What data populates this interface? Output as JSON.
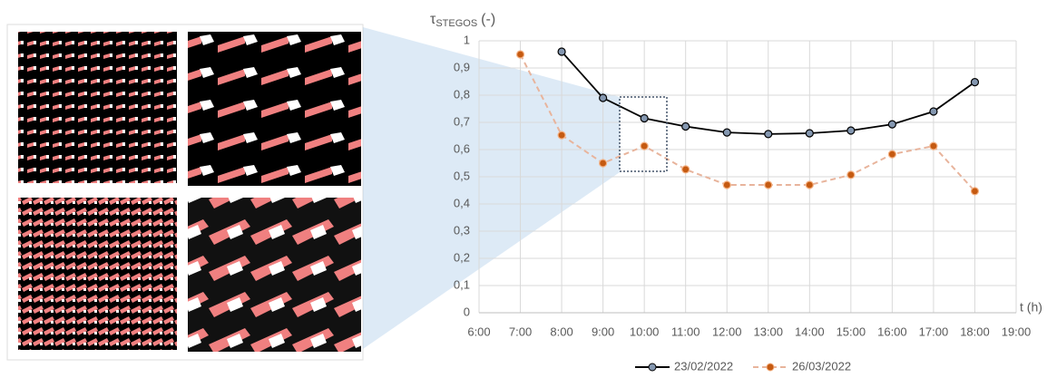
{
  "chart_data": {
    "type": "line",
    "y_label": {
      "symbol": "τ",
      "subscript": "STEGOS",
      "unit": "(-)"
    },
    "x_label": "t (h)",
    "categories": [
      "6:00",
      "7:00",
      "8:00",
      "9:00",
      "10:00",
      "11:00",
      "12:00",
      "13:00",
      "14:00",
      "15:00",
      "16:00",
      "17:00",
      "18:00",
      "19:00"
    ],
    "series": [
      {
        "name": "23/02/2022",
        "color": "#000000",
        "dashed": false,
        "values": [
          null,
          null,
          0.96,
          0.79,
          0.715,
          0.685,
          0.663,
          0.657,
          0.66,
          0.67,
          0.693,
          0.74,
          0.848,
          null
        ]
      },
      {
        "name": "26/03/2022",
        "color": "#e8b49c",
        "dashed": true,
        "values": [
          null,
          0.95,
          0.653,
          0.55,
          0.613,
          0.527,
          0.47,
          0.47,
          0.47,
          0.507,
          0.583,
          0.613,
          0.447,
          null
        ]
      }
    ],
    "ylim": [
      0,
      1
    ],
    "yticks": [
      0,
      {
        "value": 0.1,
        "label": "0,1"
      },
      {
        "value": 0.2,
        "label": "0,2"
      },
      {
        "value": 0.3,
        "label": "0,3"
      },
      {
        "value": 0.4,
        "label": "0,4"
      },
      {
        "value": 0.5,
        "label": "0,5"
      },
      {
        "value": 0.6,
        "label": "0,6"
      },
      {
        "value": 0.7,
        "label": "0,7"
      },
      {
        "value": 0.8,
        "label": "0,8"
      },
      {
        "value": 0.9,
        "label": "0,9"
      },
      1
    ],
    "grid": true
  }
}
